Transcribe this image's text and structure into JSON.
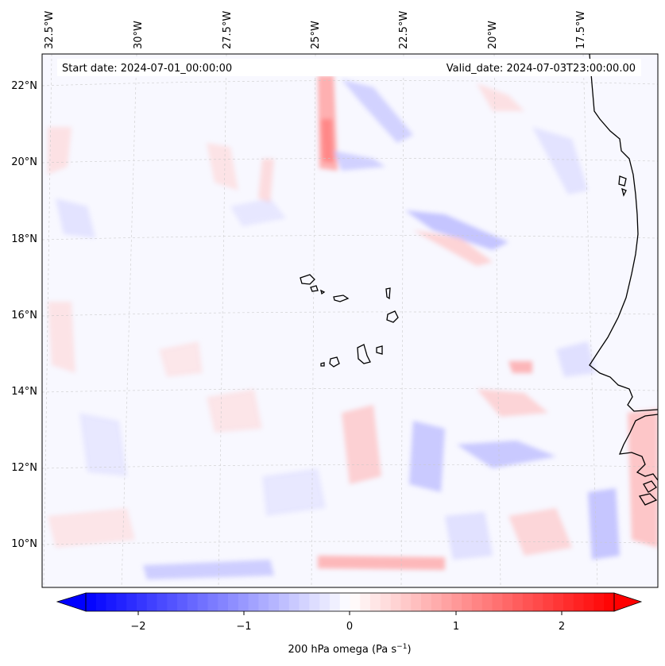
{
  "header": {
    "start_date": "Start date: 2024-07-01_00:00:00",
    "valid_date": "Valid_date: 2024-07-03T23:00:00.00"
  },
  "longitude_labels": [
    "32.5°W",
    "30°W",
    "27.5°W",
    "25°W",
    "22.5°W",
    "20°W",
    "17.5°W"
  ],
  "latitude_labels": [
    "22°N",
    "20°N",
    "18°N",
    "16°N",
    "14°N",
    "12°N",
    "10°N"
  ],
  "colorbar": {
    "label_main": "200 hPa omega (Pa s",
    "label_exp": "−1",
    "label_end": ")",
    "ticks": [
      "−2",
      "−1",
      "0",
      "1",
      "2"
    ],
    "tick_values": [
      -2,
      -1,
      0,
      1,
      2
    ],
    "min": -2.6,
    "max": 2.6,
    "colormap": "bwr",
    "extend": "both",
    "low_color": "#0000ff",
    "mid_color": "#ffffff",
    "high_color": "#ff0000"
  },
  "field": {
    "background_color": "#f8f8ff",
    "coastline_color": "#000000"
  }
}
